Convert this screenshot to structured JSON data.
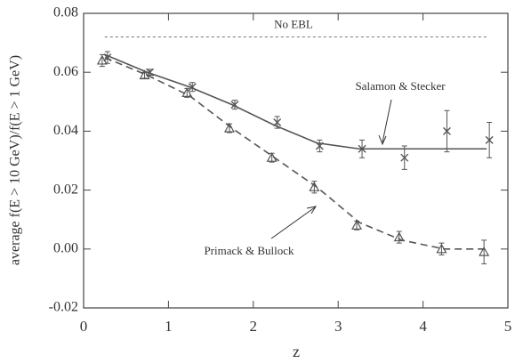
{
  "chart_data": {
    "type": "scatter",
    "xlabel": "z",
    "ylabel": "average f(E > 10 GeV)/f(E > 1 GeV)",
    "xlim": [
      0,
      5
    ],
    "ylim": [
      -0.02,
      0.08
    ],
    "xticks": [
      0,
      1,
      2,
      3,
      4,
      5
    ],
    "yticks": [
      -0.02,
      {
        "value": 0,
        "label": "0.00"
      },
      0.02,
      0.04,
      0.06,
      0.08
    ],
    "reference": {
      "label": "No EBL",
      "value": 0.072
    },
    "series": [
      {
        "name": "Salamon & Stecker",
        "color": "#555555",
        "marker": "x",
        "line_style": "solid",
        "x": [
          0.25,
          0.75,
          1.25,
          1.75,
          2.25,
          2.75,
          3.25,
          3.75,
          4.25,
          4.75
        ],
        "values": [
          0.065,
          0.06,
          0.055,
          0.049,
          0.043,
          0.035,
          0.034,
          0.031,
          0.04,
          0.037
        ],
        "errors": [
          0.002,
          0.001,
          0.0015,
          0.0015,
          0.002,
          0.002,
          0.003,
          0.004,
          0.007,
          0.006
        ],
        "model": [
          0.066,
          0.06,
          0.055,
          0.049,
          0.042,
          0.036,
          0.034,
          0.034,
          0.034,
          0.034
        ]
      },
      {
        "name": "Primack & Bullock",
        "color": "#555555",
        "marker": "triangle",
        "line_style": "dashed",
        "x": [
          0.25,
          0.75,
          1.25,
          1.75,
          2.25,
          2.75,
          3.25,
          3.75,
          4.25,
          4.75
        ],
        "values": [
          0.064,
          0.059,
          0.053,
          0.041,
          0.031,
          0.021,
          0.008,
          0.004,
          0.0,
          -0.001
        ],
        "errors": [
          0.002,
          0.001,
          0.0015,
          0.0015,
          0.0015,
          0.002,
          0.0015,
          0.002,
          0.002,
          0.004
        ],
        "model": [
          0.065,
          0.059,
          0.052,
          0.041,
          0.031,
          0.021,
          0.009,
          0.003,
          0.0,
          0.0
        ]
      }
    ]
  }
}
